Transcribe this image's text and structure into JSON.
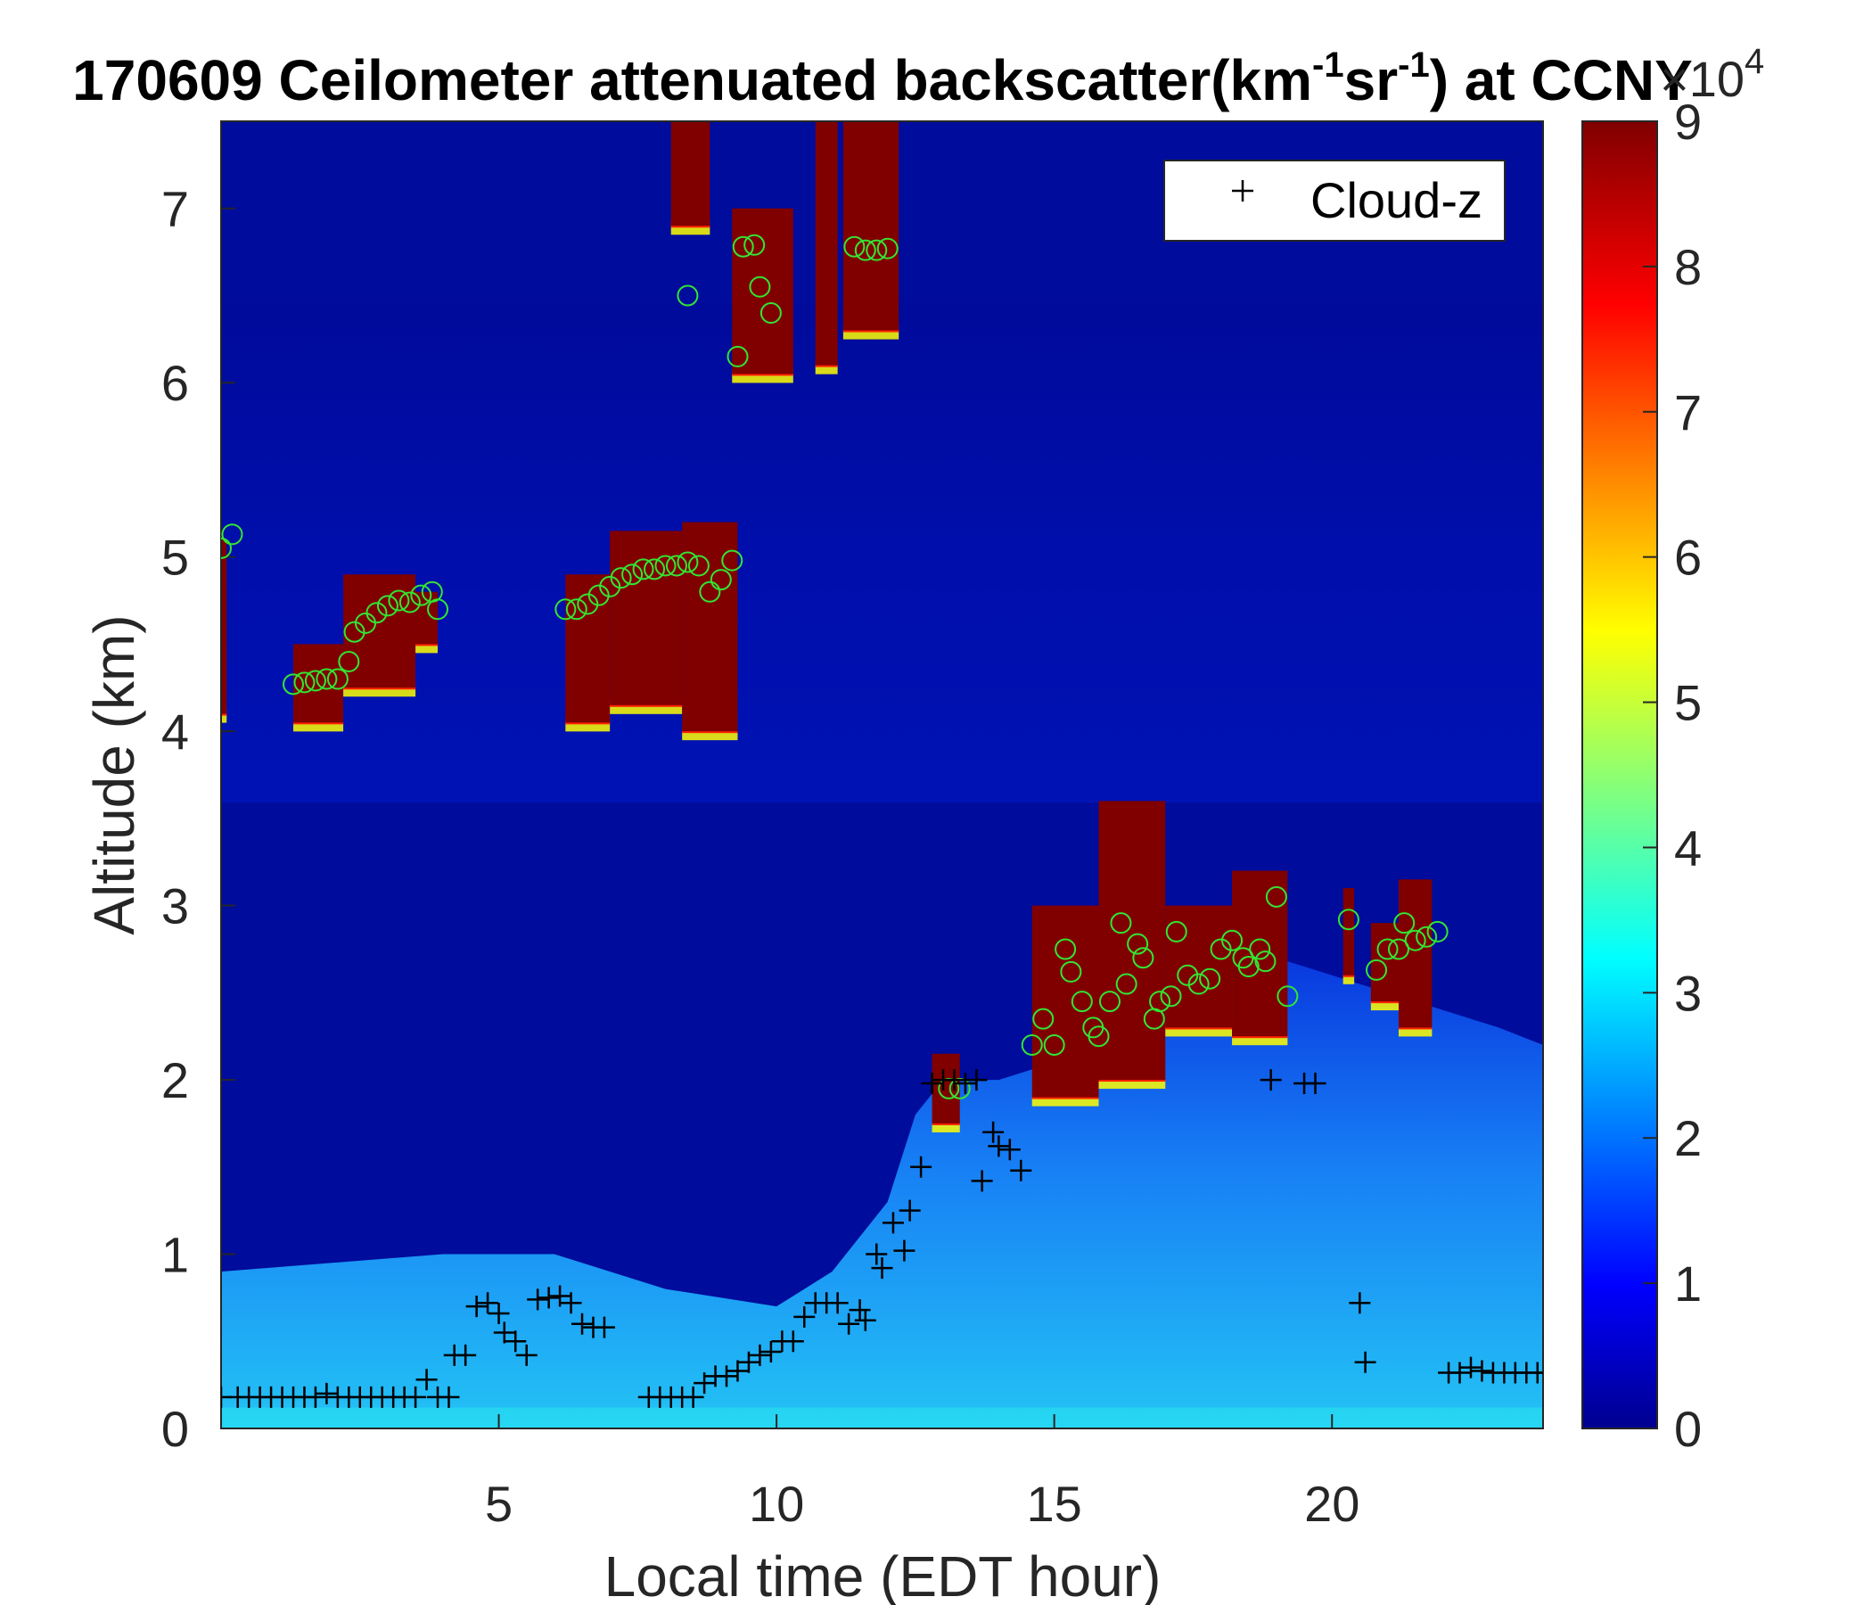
{
  "chart_data": {
    "type": "heatmap",
    "title": "170609 Ceilometer attenuated backscatter(km",
    "title_sup1": "-1",
    "title_mid": "sr",
    "title_sup2": "-1",
    "title_end": ") at CCNY",
    "xlabel": "Local time (EDT hour)",
    "ylabel": "Altitude (km)",
    "xlim": [
      0,
      23.8
    ],
    "ylim": [
      0,
      7.5
    ],
    "xticks": [
      5,
      10,
      15,
      20
    ],
    "yticks": [
      0,
      1,
      2,
      3,
      4,
      5,
      6,
      7
    ],
    "colorbar": {
      "min": 0,
      "max": 9,
      "ticks": [
        0,
        1,
        2,
        3,
        4,
        5,
        6,
        7,
        8,
        9
      ],
      "multiplier_base": "×10",
      "multiplier_exp": "4",
      "colormap": "jet"
    },
    "legend": {
      "entry": "Cloud-z",
      "marker": "+",
      "placement": "top-right"
    },
    "cloud_layers": [
      {
        "t0": 0.0,
        "t1": 0.1,
        "base": 4.1,
        "top": 5.1
      },
      {
        "t0": 1.3,
        "t1": 2.2,
        "base": 4.05,
        "top": 4.5
      },
      {
        "t0": 2.2,
        "t1": 3.5,
        "base": 4.25,
        "top": 4.9
      },
      {
        "t0": 3.5,
        "t1": 3.9,
        "base": 4.5,
        "top": 4.8
      },
      {
        "t0": 6.2,
        "t1": 7.0,
        "base": 4.05,
        "top": 4.9
      },
      {
        "t0": 7.0,
        "t1": 8.3,
        "base": 4.15,
        "top": 5.15
      },
      {
        "t0": 8.3,
        "t1": 9.3,
        "base": 4.0,
        "top": 5.2
      },
      {
        "t0": 8.1,
        "t1": 8.8,
        "base": 6.9,
        "top": 7.5
      },
      {
        "t0": 9.2,
        "t1": 10.3,
        "base": 6.05,
        "top": 7.0
      },
      {
        "t0": 10.7,
        "t1": 11.1,
        "base": 6.1,
        "top": 7.5
      },
      {
        "t0": 11.2,
        "t1": 12.2,
        "base": 6.3,
        "top": 7.5
      },
      {
        "t0": 12.8,
        "t1": 13.3,
        "base": 1.75,
        "top": 2.15
      },
      {
        "t0": 14.6,
        "t1": 15.8,
        "base": 1.9,
        "top": 3.0
      },
      {
        "t0": 15.8,
        "t1": 17.0,
        "base": 2.0,
        "top": 3.6
      },
      {
        "t0": 17.0,
        "t1": 18.2,
        "base": 2.3,
        "top": 3.0
      },
      {
        "t0": 18.2,
        "t1": 19.2,
        "base": 2.25,
        "top": 3.2
      },
      {
        "t0": 20.2,
        "t1": 20.4,
        "base": 2.6,
        "top": 3.1
      },
      {
        "t0": 20.7,
        "t1": 21.2,
        "base": 2.45,
        "top": 2.9
      },
      {
        "t0": 21.2,
        "t1": 21.8,
        "base": 2.3,
        "top": 3.15
      }
    ],
    "boundary_layer": {
      "times": [
        0,
        2,
        4,
        6,
        8,
        10,
        11,
        12,
        12.5,
        13,
        14,
        15,
        16,
        17,
        18,
        19,
        20,
        21,
        22,
        23,
        23.8
      ],
      "tops": [
        0.9,
        0.95,
        1.0,
        1.0,
        0.8,
        0.7,
        0.9,
        1.3,
        1.8,
        2.0,
        2.0,
        2.1,
        2.2,
        2.4,
        2.6,
        2.7,
        2.6,
        2.5,
        2.4,
        2.3,
        2.2
      ]
    },
    "cloud_z_points": [
      [
        0.0,
        0.18
      ],
      [
        0.3,
        0.18
      ],
      [
        0.5,
        0.18
      ],
      [
        0.7,
        0.18
      ],
      [
        0.9,
        0.18
      ],
      [
        1.1,
        0.18
      ],
      [
        1.3,
        0.18
      ],
      [
        1.5,
        0.18
      ],
      [
        1.7,
        0.18
      ],
      [
        1.9,
        0.2
      ],
      [
        2.1,
        0.18
      ],
      [
        2.3,
        0.18
      ],
      [
        2.5,
        0.18
      ],
      [
        2.7,
        0.18
      ],
      [
        2.9,
        0.18
      ],
      [
        3.1,
        0.18
      ],
      [
        3.3,
        0.18
      ],
      [
        3.5,
        0.18
      ],
      [
        3.7,
        0.28
      ],
      [
        3.9,
        0.18
      ],
      [
        4.1,
        0.18
      ],
      [
        4.2,
        0.42
      ],
      [
        4.4,
        0.42
      ],
      [
        4.6,
        0.7
      ],
      [
        4.8,
        0.72
      ],
      [
        5.0,
        0.66
      ],
      [
        5.1,
        0.55
      ],
      [
        5.3,
        0.5
      ],
      [
        5.5,
        0.42
      ],
      [
        5.7,
        0.74
      ],
      [
        5.9,
        0.75
      ],
      [
        6.1,
        0.76
      ],
      [
        6.3,
        0.72
      ],
      [
        6.5,
        0.6
      ],
      [
        6.7,
        0.58
      ],
      [
        6.9,
        0.58
      ],
      [
        7.7,
        0.18
      ],
      [
        7.9,
        0.18
      ],
      [
        8.1,
        0.18
      ],
      [
        8.3,
        0.18
      ],
      [
        8.5,
        0.18
      ],
      [
        8.7,
        0.26
      ],
      [
        8.9,
        0.3
      ],
      [
        9.1,
        0.3
      ],
      [
        9.3,
        0.33
      ],
      [
        9.5,
        0.38
      ],
      [
        9.7,
        0.42
      ],
      [
        9.9,
        0.44
      ],
      [
        10.1,
        0.5
      ],
      [
        10.3,
        0.5
      ],
      [
        10.5,
        0.64
      ],
      [
        10.7,
        0.72
      ],
      [
        10.9,
        0.72
      ],
      [
        11.1,
        0.72
      ],
      [
        11.3,
        0.6
      ],
      [
        11.5,
        0.68
      ],
      [
        11.6,
        0.62
      ],
      [
        11.8,
        1.0
      ],
      [
        11.9,
        0.92
      ],
      [
        12.1,
        1.18
      ],
      [
        12.3,
        1.02
      ],
      [
        12.4,
        1.25
      ],
      [
        12.6,
        1.5
      ],
      [
        12.8,
        1.98
      ],
      [
        13.0,
        2.0
      ],
      [
        13.2,
        2.0
      ],
      [
        13.4,
        1.98
      ],
      [
        13.6,
        2.0
      ],
      [
        13.7,
        1.42
      ],
      [
        13.9,
        1.7
      ],
      [
        14.0,
        1.62
      ],
      [
        14.2,
        1.6
      ],
      [
        14.4,
        1.48
      ],
      [
        18.9,
        2.0
      ],
      [
        19.5,
        1.98
      ],
      [
        19.7,
        1.98
      ],
      [
        20.5,
        0.72
      ],
      [
        20.6,
        0.38
      ],
      [
        22.1,
        0.32
      ],
      [
        22.3,
        0.32
      ],
      [
        22.5,
        0.35
      ],
      [
        22.7,
        0.33
      ],
      [
        22.9,
        0.32
      ],
      [
        23.1,
        0.32
      ],
      [
        23.3,
        0.32
      ],
      [
        23.5,
        0.32
      ],
      [
        23.7,
        0.32
      ],
      [
        23.9,
        0.32
      ]
    ],
    "circle_points": [
      [
        0.0,
        5.05
      ],
      [
        0.2,
        5.13
      ],
      [
        1.3,
        4.27
      ],
      [
        1.5,
        4.28
      ],
      [
        1.7,
        4.29
      ],
      [
        1.9,
        4.3
      ],
      [
        2.1,
        4.3
      ],
      [
        2.3,
        4.4
      ],
      [
        2.4,
        4.57
      ],
      [
        2.6,
        4.62
      ],
      [
        2.8,
        4.68
      ],
      [
        3.0,
        4.72
      ],
      [
        3.2,
        4.75
      ],
      [
        3.4,
        4.74
      ],
      [
        3.6,
        4.78
      ],
      [
        3.8,
        4.8
      ],
      [
        3.9,
        4.7
      ],
      [
        6.2,
        4.7
      ],
      [
        6.4,
        4.7
      ],
      [
        6.6,
        4.73
      ],
      [
        6.8,
        4.78
      ],
      [
        7.0,
        4.83
      ],
      [
        7.2,
        4.88
      ],
      [
        7.4,
        4.9
      ],
      [
        7.6,
        4.93
      ],
      [
        7.8,
        4.93
      ],
      [
        8.0,
        4.95
      ],
      [
        8.2,
        4.95
      ],
      [
        8.4,
        4.97
      ],
      [
        8.6,
        4.95
      ],
      [
        8.8,
        4.8
      ],
      [
        9.0,
        4.87
      ],
      [
        9.2,
        4.98
      ],
      [
        8.4,
        6.5
      ],
      [
        9.3,
        6.15
      ],
      [
        9.4,
        6.78
      ],
      [
        9.6,
        6.79
      ],
      [
        9.7,
        6.55
      ],
      [
        9.9,
        6.4
      ],
      [
        11.4,
        6.78
      ],
      [
        11.6,
        6.76
      ],
      [
        11.8,
        6.76
      ],
      [
        12.0,
        6.77
      ],
      [
        13.1,
        1.95
      ],
      [
        13.3,
        1.95
      ],
      [
        14.6,
        2.2
      ],
      [
        14.8,
        2.35
      ],
      [
        15.0,
        2.2
      ],
      [
        15.2,
        2.75
      ],
      [
        15.3,
        2.62
      ],
      [
        15.5,
        2.45
      ],
      [
        15.7,
        2.3
      ],
      [
        15.8,
        2.25
      ],
      [
        16.0,
        2.45
      ],
      [
        16.2,
        2.9
      ],
      [
        16.3,
        2.55
      ],
      [
        16.5,
        2.78
      ],
      [
        16.6,
        2.7
      ],
      [
        16.8,
        2.35
      ],
      [
        16.9,
        2.45
      ],
      [
        17.1,
        2.48
      ],
      [
        17.2,
        2.85
      ],
      [
        17.4,
        2.6
      ],
      [
        17.6,
        2.55
      ],
      [
        17.8,
        2.58
      ],
      [
        18.0,
        2.75
      ],
      [
        18.2,
        2.8
      ],
      [
        18.4,
        2.7
      ],
      [
        18.5,
        2.65
      ],
      [
        18.7,
        2.75
      ],
      [
        18.8,
        2.68
      ],
      [
        19.0,
        3.05
      ],
      [
        19.2,
        2.48
      ],
      [
        20.3,
        2.92
      ],
      [
        20.8,
        2.63
      ],
      [
        21.0,
        2.75
      ],
      [
        21.2,
        2.75
      ],
      [
        21.3,
        2.9
      ],
      [
        21.5,
        2.8
      ],
      [
        21.7,
        2.82
      ],
      [
        21.9,
        2.85
      ]
    ]
  }
}
